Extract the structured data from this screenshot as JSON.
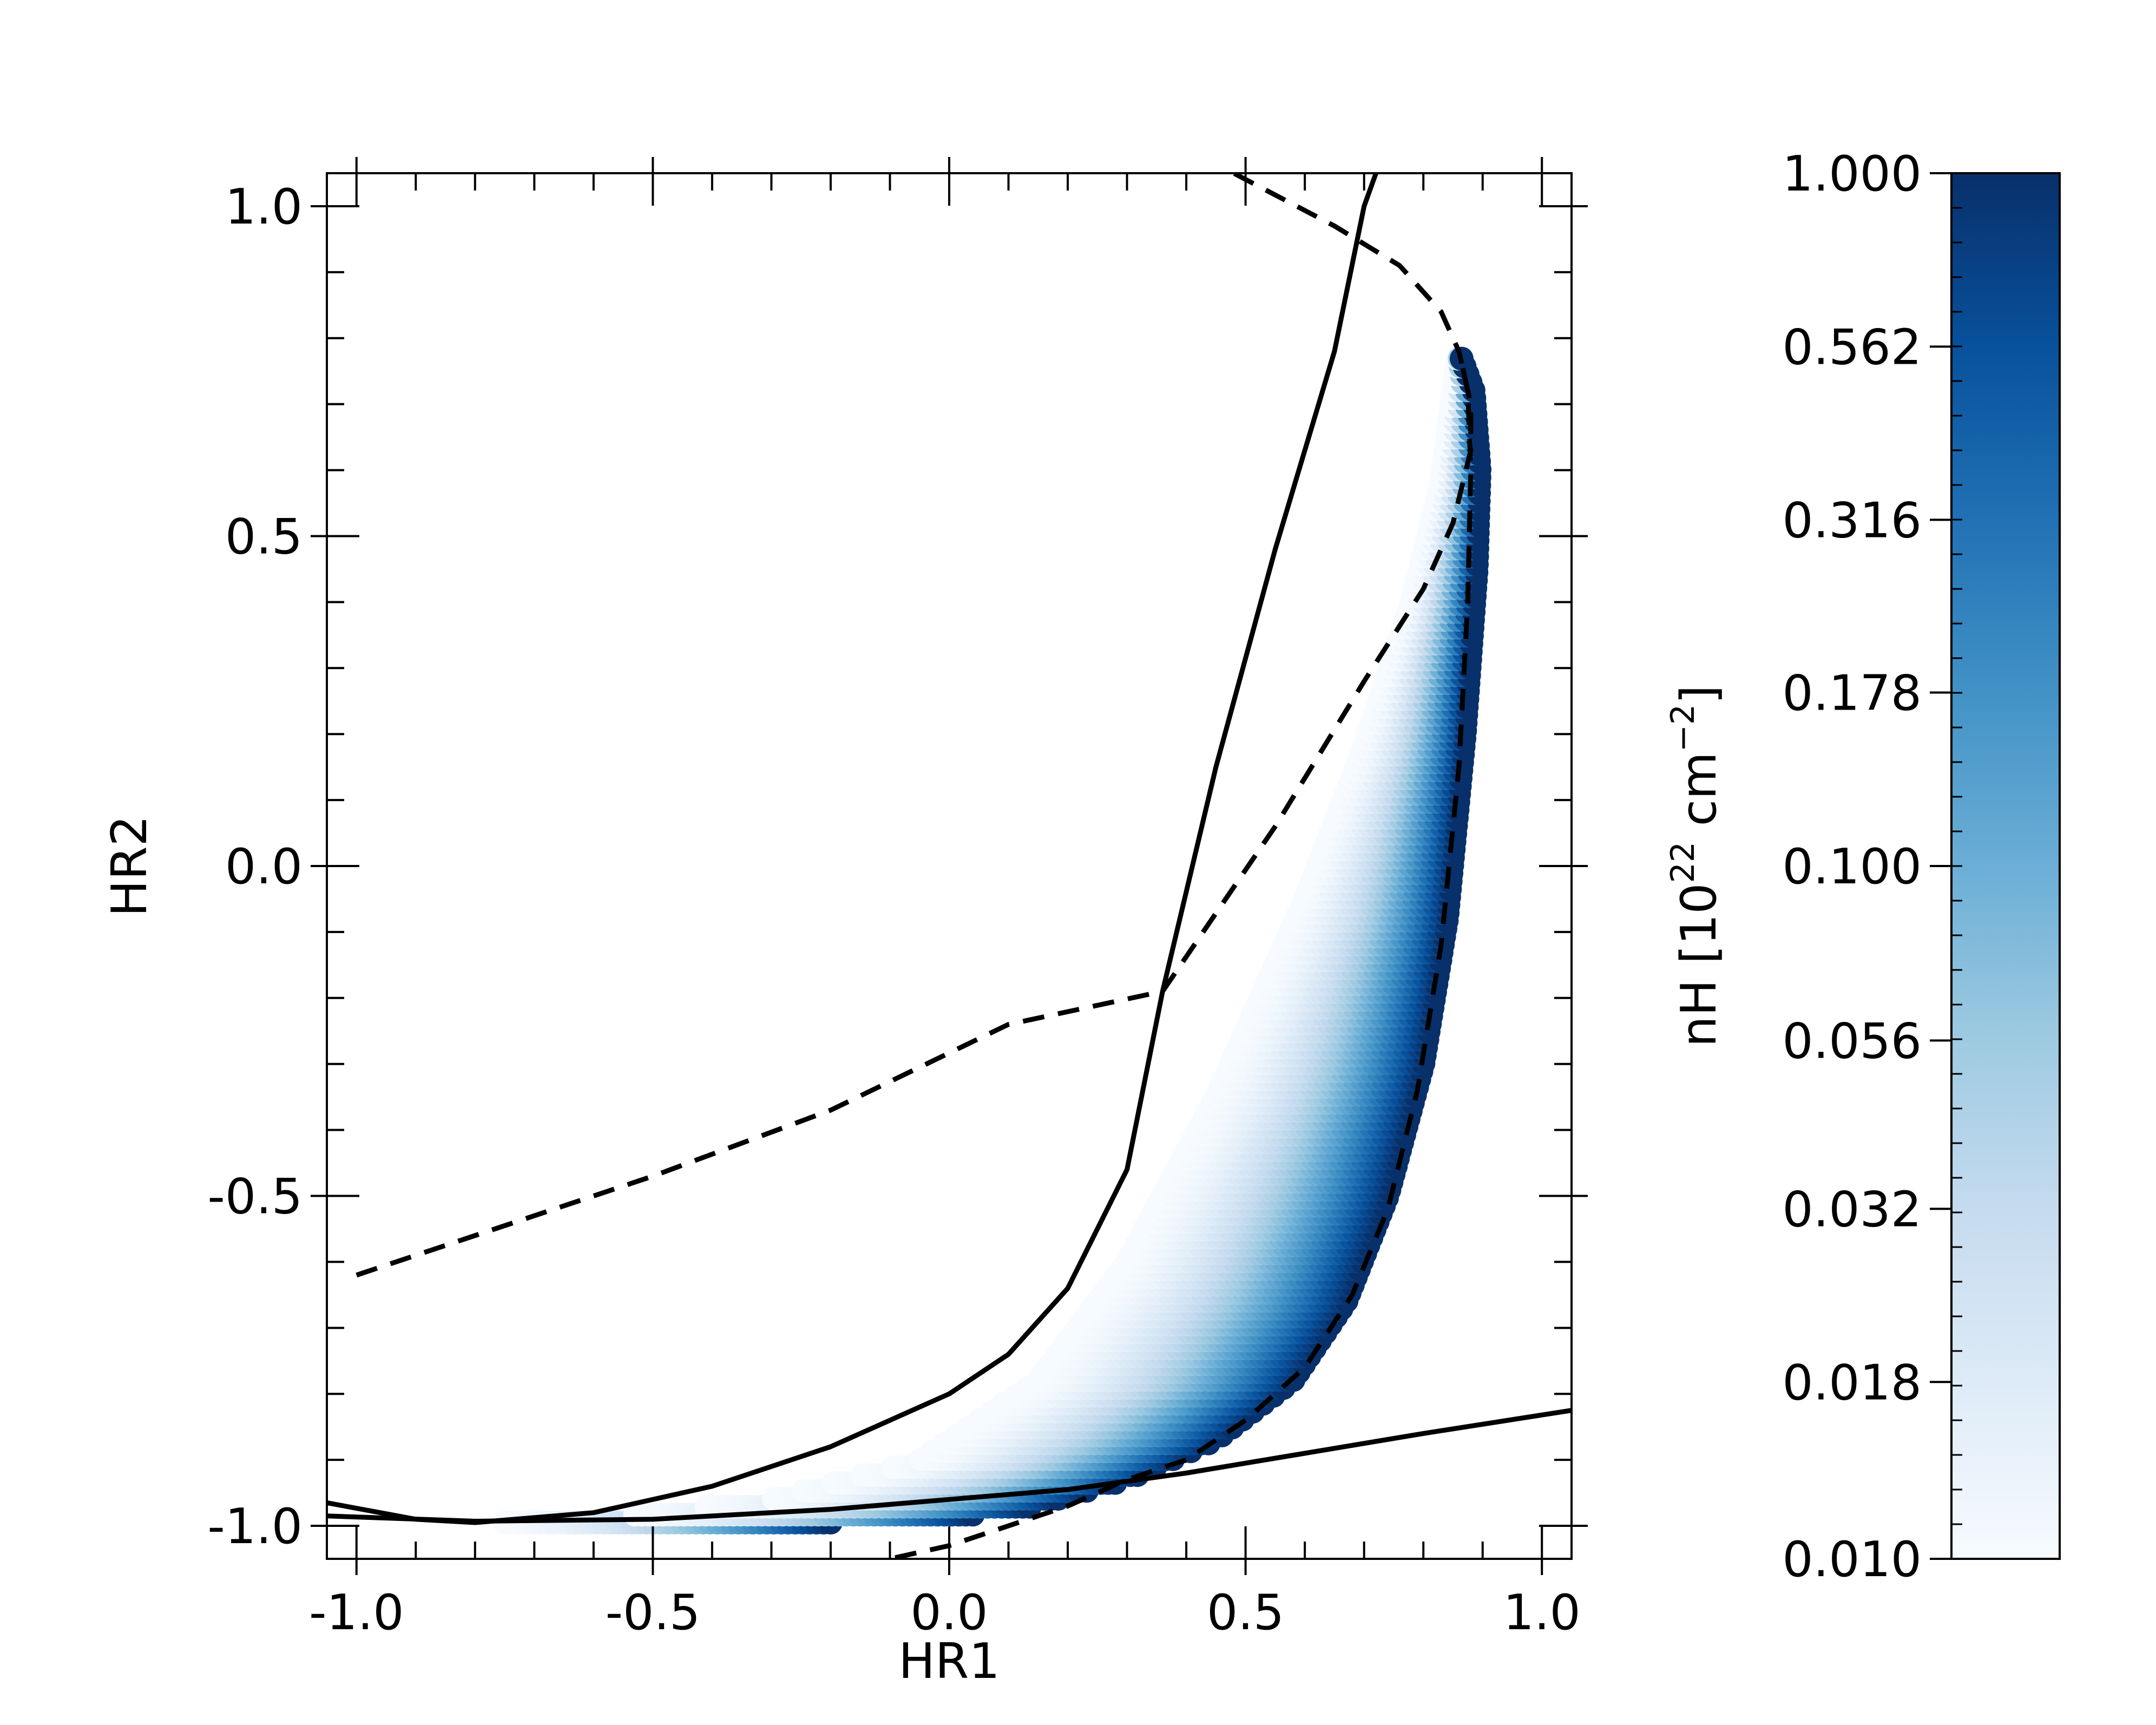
{
  "chart_data": {
    "type": "scatter",
    "title": "",
    "xlabel": "HR1",
    "ylabel": "HR2",
    "xlim": [
      -1.05,
      1.05
    ],
    "ylim": [
      -1.05,
      1.05
    ],
    "x_ticks": [
      {
        "value": -1.0,
        "label": "-1.0"
      },
      {
        "value": -0.5,
        "label": "-0.5"
      },
      {
        "value": 0.0,
        "label": "0.0"
      },
      {
        "value": 0.5,
        "label": "0.5"
      },
      {
        "value": 1.0,
        "label": "1.0"
      }
    ],
    "y_ticks": [
      {
        "value": -1.0,
        "label": "-1.0"
      },
      {
        "value": -0.5,
        "label": "-0.5"
      },
      {
        "value": 0.0,
        "label": "0.0"
      },
      {
        "value": 0.5,
        "label": "0.5"
      },
      {
        "value": 1.0,
        "label": "1.0"
      }
    ],
    "grid": false,
    "colormap": {
      "name": "Blues",
      "low_color": "#f7fbff",
      "high_color": "#08306b"
    },
    "colorbar": {
      "label_main": "nH [10",
      "label_sup1": "22",
      "label_mid": " cm",
      "label_sup2": "−2",
      "label_end": "]",
      "scale": "log",
      "range": [
        0.01,
        1.0
      ],
      "ticks": [
        {
          "value": 1.0,
          "label": "1.000"
        },
        {
          "value": 0.562,
          "label": "0.562"
        },
        {
          "value": 0.316,
          "label": "0.316"
        },
        {
          "value": 0.178,
          "label": "0.178"
        },
        {
          "value": 0.1,
          "label": "0.100"
        },
        {
          "value": 0.056,
          "label": "0.056"
        },
        {
          "value": 0.032,
          "label": "0.032"
        },
        {
          "value": 0.018,
          "label": "0.018"
        },
        {
          "value": 0.01,
          "label": "0.010"
        }
      ]
    },
    "series": [
      {
        "style": "solid",
        "color": "#000000",
        "points": [
          [
            -1.05,
            -0.965
          ],
          [
            -0.9,
            -0.99
          ],
          [
            -0.8,
            -0.995
          ],
          [
            -0.6,
            -0.98
          ],
          [
            -0.4,
            -0.94
          ],
          [
            -0.2,
            -0.88
          ],
          [
            0.0,
            -0.8
          ],
          [
            0.1,
            -0.74
          ],
          [
            0.2,
            -0.64
          ],
          [
            0.3,
            -0.46
          ],
          [
            0.36,
            -0.19
          ],
          [
            0.45,
            0.15
          ],
          [
            0.55,
            0.48
          ],
          [
            0.65,
            0.78
          ],
          [
            0.7,
            1.0
          ],
          [
            0.72,
            1.05
          ]
        ]
      },
      {
        "style": "solid",
        "color": "#000000",
        "points": [
          [
            -1.05,
            -0.985
          ],
          [
            -0.8,
            -0.993
          ],
          [
            -0.5,
            -0.99
          ],
          [
            -0.2,
            -0.975
          ],
          [
            0.0,
            -0.96
          ],
          [
            0.2,
            -0.945
          ],
          [
            0.4,
            -0.92
          ],
          [
            0.6,
            -0.89
          ],
          [
            0.8,
            -0.86
          ],
          [
            1.05,
            -0.825
          ]
        ]
      },
      {
        "style": "dashed",
        "color": "#000000",
        "points": [
          [
            -1.0,
            -0.62
          ],
          [
            -0.8,
            -0.56
          ],
          [
            -0.5,
            -0.47
          ],
          [
            -0.2,
            -0.37
          ],
          [
            0.1,
            -0.24
          ],
          [
            0.36,
            -0.19
          ],
          [
            0.55,
            0.06
          ],
          [
            0.7,
            0.28
          ],
          [
            0.8,
            0.42
          ],
          [
            0.85,
            0.52
          ],
          [
            0.88,
            0.63
          ],
          [
            0.88,
            0.7
          ],
          [
            0.86,
            0.78
          ],
          [
            0.83,
            0.84
          ],
          [
            0.76,
            0.91
          ],
          [
            0.65,
            0.97
          ],
          [
            0.48,
            1.05
          ]
        ]
      },
      {
        "style": "dashed",
        "color": "#000000",
        "points": [
          [
            -0.15,
            -1.06
          ],
          [
            0.0,
            -1.03
          ],
          [
            0.2,
            -0.97
          ],
          [
            0.3,
            -0.93
          ],
          [
            0.4,
            -0.9
          ],
          [
            0.5,
            -0.84
          ],
          [
            0.6,
            -0.76
          ],
          [
            0.68,
            -0.65
          ],
          [
            0.74,
            -0.52
          ],
          [
            0.79,
            -0.34
          ],
          [
            0.83,
            -0.12
          ],
          [
            0.86,
            0.15
          ],
          [
            0.875,
            0.4
          ],
          [
            0.88,
            0.6
          ],
          [
            0.875,
            0.72
          ],
          [
            0.86,
            0.78
          ]
        ]
      }
    ],
    "scatter_region": {
      "description_nH_log_range": [
        0.01,
        1.0
      ]
    }
  }
}
